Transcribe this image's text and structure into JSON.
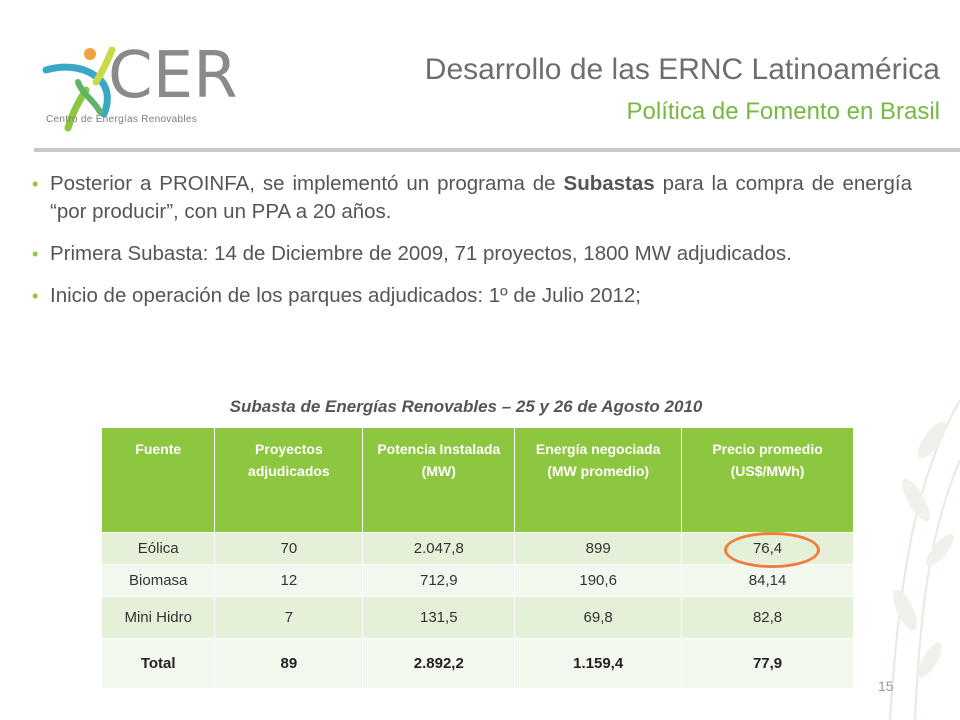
{
  "logo": {
    "name": "CER",
    "tagline": "Centro de Energías Renovables"
  },
  "header": {
    "title": "Desarrollo de las ERNC Latinoamérica",
    "subtitle": "Política de Fomento en Brasil"
  },
  "bullets": [
    {
      "before": "Posterior a PROINFA, se implementó un programa de ",
      "bold": "Subastas",
      "after": " para la compra de energía “por producir”, con un PPA a 20 años."
    },
    {
      "before": "Primera Subasta: 14 de Diciembre de 2009, 71 proyectos, 1800 MW adjudicados.",
      "bold": "",
      "after": ""
    },
    {
      "before": "Inicio de operación de los parques adjudicados: 1º de Julio 2012;",
      "bold": "",
      "after": ""
    }
  ],
  "table": {
    "caption": "Subasta de Energías Renovables – 25 y 26 de Agosto 2010",
    "headers": [
      "Fuente",
      "Proyectos adjudicados",
      "Potencia Instalada (MW)",
      "Energía negociada (MW promedio)",
      "Precio promedio (US$/MWh)"
    ],
    "rows": [
      [
        "Eólica",
        "70",
        "2.047,8",
        "899",
        "76,4"
      ],
      [
        "Biomasa",
        "12",
        "712,9",
        "190,6",
        "84,14"
      ],
      [
        "Mini Hidro",
        "7",
        "131,5",
        "69,8",
        "82,8"
      ],
      [
        "Total",
        "89",
        "2.892,2",
        "1.159,4",
        "77,9"
      ]
    ],
    "highlight_color": "#f07d3c"
  },
  "colors": {
    "accent_green": "#8dc63f",
    "title_gray": "#6e6e6e",
    "subtitle_green": "#77b843"
  },
  "page_number": "15"
}
